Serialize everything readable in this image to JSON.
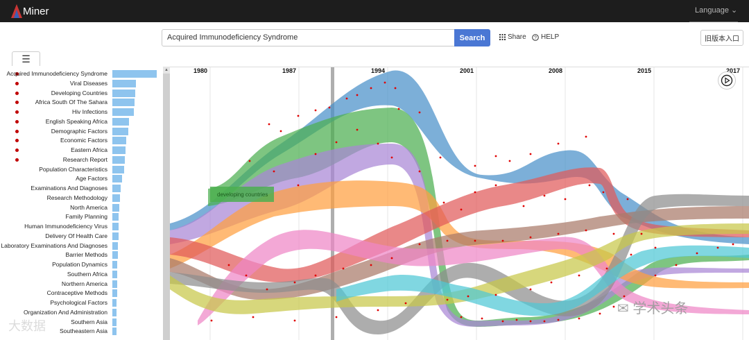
{
  "app": {
    "logo_text": "Miner",
    "language": "Language"
  },
  "search": {
    "value": "Acquired Immunodeficiency Syndrome",
    "button": "Search"
  },
  "toolbar": {
    "share": "Share",
    "help": "HELP",
    "old_version": "旧版本入口"
  },
  "menu": {
    "icon": "list-icon"
  },
  "topics": [
    {
      "label": "Acquired Immunodeficiency Syndrome",
      "bar": 64,
      "dot": true
    },
    {
      "label": "Viral Diseases",
      "bar": 34,
      "dot": true
    },
    {
      "label": "Developing Countries",
      "bar": 33,
      "dot": true
    },
    {
      "label": "Africa South Of The Sahara",
      "bar": 32,
      "dot": true
    },
    {
      "label": "Hiv Infections",
      "bar": 31,
      "dot": true
    },
    {
      "label": "English Speaking Africa",
      "bar": 24,
      "dot": true
    },
    {
      "label": "Demographic Factors",
      "bar": 23,
      "dot": true
    },
    {
      "label": "Economic Factors",
      "bar": 20,
      "dot": true
    },
    {
      "label": "Eastern Africa",
      "bar": 19,
      "dot": true
    },
    {
      "label": "Research Report",
      "bar": 18,
      "dot": true
    },
    {
      "label": "Population Characteristics",
      "bar": 17,
      "dot": false
    },
    {
      "label": "Age Factors",
      "bar": 14,
      "dot": false
    },
    {
      "label": "Examinations And Diagnoses",
      "bar": 12,
      "dot": false
    },
    {
      "label": "Research Methodology",
      "bar": 11,
      "dot": false
    },
    {
      "label": "North America",
      "bar": 10,
      "dot": false
    },
    {
      "label": "Family Planning",
      "bar": 9,
      "dot": false
    },
    {
      "label": "Human Immunodeficiency Virus",
      "bar": 9,
      "dot": false
    },
    {
      "label": "Delivery Of Health Care",
      "bar": 9,
      "dot": false
    },
    {
      "label": "Laboratory Examinations And Diagnoses",
      "bar": 8,
      "dot": false
    },
    {
      "label": "Barrier Methods",
      "bar": 8,
      "dot": false
    },
    {
      "label": "Population Dynamics",
      "bar": 7,
      "dot": false
    },
    {
      "label": "Southern Africa",
      "bar": 7,
      "dot": false
    },
    {
      "label": "Northern America",
      "bar": 7,
      "dot": false
    },
    {
      "label": "Contraceptive Methods",
      "bar": 7,
      "dot": false
    },
    {
      "label": "Psychological Factors",
      "bar": 6,
      "dot": false
    },
    {
      "label": "Organization And Administration",
      "bar": 6,
      "dot": false
    },
    {
      "label": "Southern Asia",
      "bar": 6,
      "dot": false
    },
    {
      "label": "Southeastern Asia",
      "bar": 6,
      "dot": false
    }
  ],
  "chart": {
    "years": [
      "1980",
      "1987",
      "1994",
      "2001",
      "2008",
      "2015",
      "2017"
    ],
    "highlight_label": "developing countries",
    "colors": {
      "blue": "#4a90c9",
      "green": "#4caf50",
      "purple": "#a987d6",
      "orange": "#ff9f40",
      "red": "#e05a5a",
      "brown": "#a97a6a",
      "pink": "#ef86c6",
      "gray": "#8e8e8e",
      "olive": "#c8c84a",
      "cyan": "#4fc8d6"
    }
  },
  "watermarks": {
    "right": "学术头条",
    "left": "大数据"
  }
}
